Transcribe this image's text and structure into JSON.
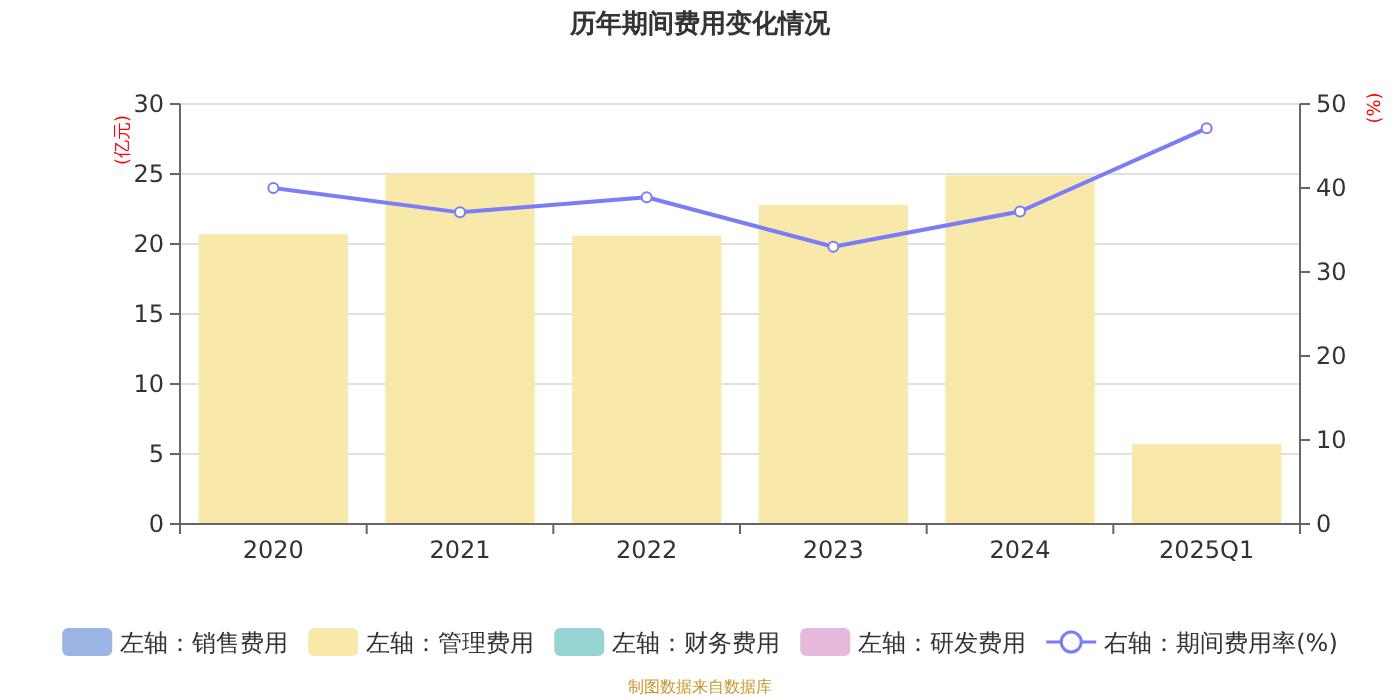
{
  "chart_data": {
    "type": "bar",
    "title": "历年期间费用变化情况",
    "categories": [
      "2020",
      "2021",
      "2022",
      "2023",
      "2024",
      "2025Q1"
    ],
    "series": [
      {
        "name": "左轴：销售费用",
        "color": "#9ab5e3",
        "values": [
          null,
          null,
          null,
          null,
          null,
          null
        ]
      },
      {
        "name": "左轴：管理费用",
        "color": "#f8e8a9",
        "values": [
          20.7,
          25.0,
          20.6,
          22.8,
          24.9,
          5.7
        ]
      },
      {
        "name": "左轴：财务费用",
        "color": "#97d5d5",
        "values": [
          null,
          null,
          null,
          null,
          null,
          null
        ]
      },
      {
        "name": "左轴：研发费用",
        "color": "#e6b9dc",
        "values": [
          null,
          null,
          null,
          null,
          null,
          null
        ]
      },
      {
        "name": "右轴：期间费用率(%)",
        "type": "line",
        "axis": "y2",
        "marker": "circle",
        "color": "#7b7cf7",
        "values": [
          40.0,
          37.1,
          38.9,
          33.0,
          37.2,
          47.1
        ]
      }
    ],
    "ylabel": "(亿元)",
    "y2label": "(%)",
    "ylim": [
      0,
      30
    ],
    "yticks": [
      0,
      5,
      10,
      15,
      20,
      25,
      30
    ],
    "y2lim": [
      0,
      50
    ],
    "y2ticks": [
      0,
      10,
      20,
      30,
      40,
      50
    ],
    "grid": "y",
    "legend": "bottom",
    "annotations": [
      "制图数据来自数据库"
    ]
  }
}
